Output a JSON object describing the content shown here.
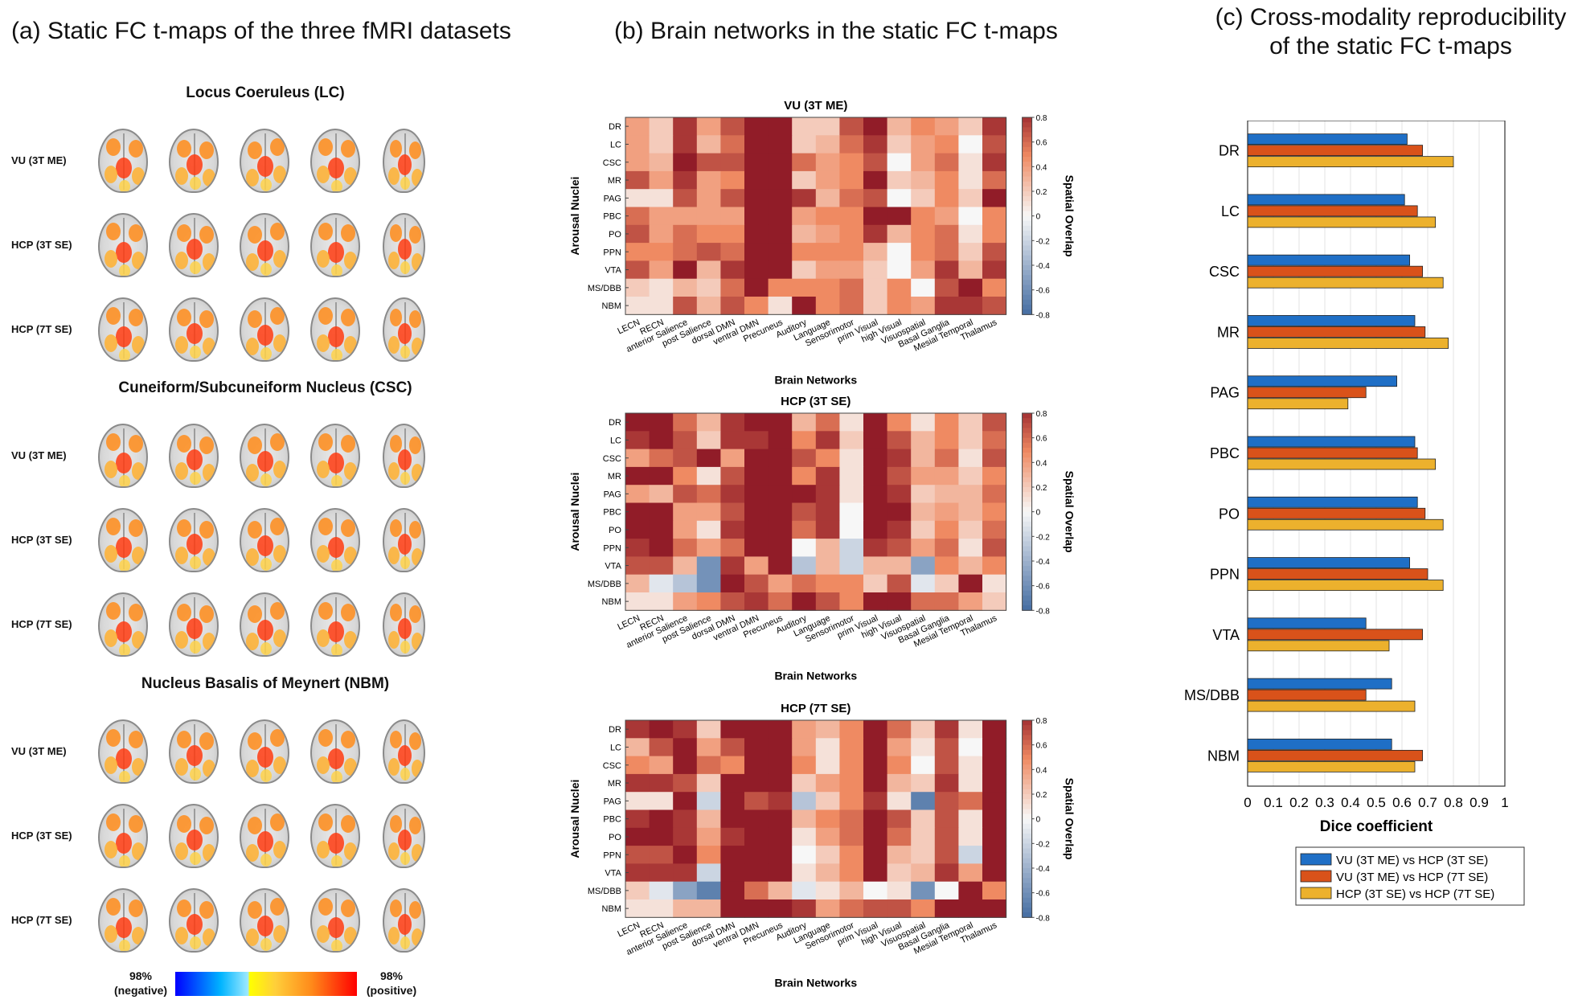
{
  "panel_a": {
    "title": "(a) Static FC t-maps of the three fMRI datasets",
    "groups": [
      {
        "title": "Locus Coeruleus (LC)",
        "rows": [
          "VU (3T ME)",
          "HCP (3T SE)",
          "HCP (7T SE)"
        ]
      },
      {
        "title": "Cuneiform/Subcuneiform Nucleus (CSC)",
        "rows": [
          "VU (3T ME)",
          "HCP (3T SE)",
          "HCP (7T SE)"
        ]
      },
      {
        "title": "Nucleus Basalis of Meynert (NBM)",
        "rows": [
          "VU (3T ME)",
          "HCP (3T SE)",
          "HCP (7T SE)"
        ]
      }
    ],
    "colorbar": {
      "left_label": "98%\n(negative)",
      "right_label": "98%\n(positive)",
      "left_line1": "98%",
      "left_line2": "(negative)",
      "right_line1": "98%",
      "right_line2": "(positive)"
    }
  },
  "panel_b": {
    "title": "(b) Brain networks in the static FC t-maps",
    "ylabel": "Arousal Nuclei",
    "xlabel": "Brain Networks",
    "cbar_label": "Spatial Overlap",
    "cbar_ticks": [
      "0.8",
      "0.6",
      "0.4",
      "0.2",
      "0",
      "-0.2",
      "-0.4",
      "-0.6",
      "-0.8"
    ],
    "nuclei": [
      "DR",
      "LC",
      "CSC",
      "MR",
      "PAG",
      "PBC",
      "PO",
      "PPN",
      "VTA",
      "MS/DBB",
      "NBM"
    ],
    "networks": [
      "LECN",
      "RECN",
      "anterior Salience",
      "post Salience",
      "dorsal DMN",
      "ventral DMN",
      "Precuneus",
      "Auditory",
      "Language",
      "Sensorimotor",
      "prim Visual",
      "high Visual",
      "Visuospatial",
      "Basal Ganglia",
      "Mesial Temporal",
      "Thalamus"
    ],
    "heatmaps": [
      {
        "title": "VU (3T ME)",
        "values": [
          [
            0.4,
            0.2,
            0.8,
            0.4,
            0.7,
            0.9,
            0.9,
            0.2,
            0.2,
            0.7,
            0.9,
            0.3,
            0.5,
            0.4,
            0.2,
            0.8
          ],
          [
            0.4,
            0.2,
            0.8,
            0.3,
            0.6,
            0.9,
            0.9,
            0.2,
            0.3,
            0.6,
            0.8,
            0.2,
            0.4,
            0.5,
            0.0,
            0.7
          ],
          [
            0.4,
            0.3,
            0.9,
            0.7,
            0.7,
            0.9,
            0.9,
            0.6,
            0.4,
            0.5,
            0.7,
            0.0,
            0.4,
            0.6,
            0.1,
            0.8
          ],
          [
            0.7,
            0.4,
            0.8,
            0.4,
            0.5,
            0.9,
            0.9,
            0.2,
            0.4,
            0.5,
            0.9,
            0.2,
            0.3,
            0.5,
            0.1,
            0.6
          ],
          [
            0.1,
            0.1,
            0.7,
            0.4,
            0.7,
            0.9,
            0.9,
            0.8,
            0.3,
            0.6,
            0.7,
            0.0,
            0.2,
            0.5,
            0.2,
            0.9
          ],
          [
            0.6,
            0.4,
            0.4,
            0.4,
            0.4,
            0.9,
            0.9,
            0.4,
            0.5,
            0.5,
            0.9,
            0.9,
            0.5,
            0.4,
            0.0,
            0.5
          ],
          [
            0.7,
            0.4,
            0.6,
            0.5,
            0.5,
            0.9,
            0.9,
            0.3,
            0.4,
            0.5,
            0.8,
            0.3,
            0.5,
            0.6,
            0.1,
            0.5
          ],
          [
            0.5,
            0.5,
            0.6,
            0.7,
            0.6,
            0.9,
            0.9,
            0.5,
            0.5,
            0.5,
            0.3,
            0.0,
            0.5,
            0.6,
            0.2,
            0.7
          ],
          [
            0.7,
            0.4,
            0.9,
            0.3,
            0.8,
            0.9,
            0.9,
            0.2,
            0.4,
            0.4,
            0.2,
            0.0,
            0.4,
            0.8,
            0.3,
            0.8
          ],
          [
            0.2,
            0.1,
            0.3,
            0.2,
            0.6,
            0.9,
            0.5,
            0.5,
            0.5,
            0.6,
            0.2,
            0.5,
            0.0,
            0.7,
            0.9,
            0.5
          ],
          [
            0.1,
            0.1,
            0.7,
            0.3,
            0.7,
            0.5,
            0.1,
            0.9,
            0.5,
            0.6,
            0.2,
            0.5,
            0.4,
            0.8,
            0.8,
            0.7
          ]
        ]
      },
      {
        "title": "HCP (3T SE)",
        "values": [
          [
            0.9,
            0.9,
            0.6,
            0.3,
            0.8,
            0.9,
            0.9,
            0.3,
            0.6,
            0.1,
            0.9,
            0.5,
            0.1,
            0.5,
            0.2,
            0.7
          ],
          [
            0.8,
            0.9,
            0.7,
            0.2,
            0.8,
            0.8,
            0.9,
            0.5,
            0.8,
            0.2,
            0.9,
            0.7,
            0.3,
            0.5,
            0.2,
            0.6
          ],
          [
            0.4,
            0.6,
            0.7,
            0.9,
            0.4,
            0.9,
            0.9,
            0.7,
            0.5,
            0.1,
            0.9,
            0.8,
            0.3,
            0.6,
            0.1,
            0.7
          ],
          [
            0.9,
            0.9,
            0.5,
            0.1,
            0.7,
            0.9,
            0.9,
            0.5,
            0.8,
            0.1,
            0.9,
            0.7,
            0.4,
            0.4,
            0.2,
            0.5
          ],
          [
            0.4,
            0.3,
            0.7,
            0.6,
            0.8,
            0.9,
            0.9,
            0.9,
            0.8,
            0.1,
            0.9,
            0.8,
            0.2,
            0.3,
            0.3,
            0.6
          ],
          [
            0.9,
            0.9,
            0.4,
            0.4,
            0.7,
            0.9,
            0.9,
            0.7,
            0.8,
            0.0,
            0.9,
            0.9,
            0.3,
            0.4,
            0.3,
            0.5
          ],
          [
            0.9,
            0.9,
            0.4,
            0.1,
            0.8,
            0.9,
            0.9,
            0.6,
            0.8,
            0.0,
            0.9,
            0.8,
            0.2,
            0.5,
            0.2,
            0.6
          ],
          [
            0.8,
            0.9,
            0.6,
            0.4,
            0.6,
            0.9,
            0.9,
            0.0,
            0.3,
            -0.2,
            0.8,
            0.7,
            0.4,
            0.6,
            0.1,
            0.7
          ],
          [
            0.7,
            0.7,
            0.3,
            -0.6,
            0.8,
            0.4,
            0.9,
            -0.3,
            0.3,
            -0.2,
            0.3,
            0.3,
            -0.5,
            0.5,
            0.3,
            0.5
          ],
          [
            0.3,
            -0.1,
            -0.3,
            -0.6,
            0.9,
            0.7,
            0.4,
            0.6,
            0.5,
            0.5,
            0.2,
            0.7,
            -0.1,
            0.2,
            0.9,
            0.1
          ],
          [
            0.1,
            0.1,
            0.4,
            0.5,
            0.7,
            0.8,
            0.6,
            0.9,
            0.7,
            0.5,
            0.9,
            0.9,
            0.6,
            0.6,
            0.4,
            0.2
          ]
        ]
      },
      {
        "title": "HCP (7T SE)",
        "values": [
          [
            0.8,
            0.9,
            0.8,
            0.2,
            0.9,
            0.9,
            0.9,
            0.4,
            0.3,
            0.5,
            0.9,
            0.6,
            0.2,
            0.8,
            0.1,
            0.9
          ],
          [
            0.3,
            0.7,
            0.9,
            0.4,
            0.7,
            0.9,
            0.9,
            0.4,
            0.1,
            0.5,
            0.9,
            0.4,
            0.1,
            0.7,
            0.0,
            0.9
          ],
          [
            0.5,
            0.4,
            0.9,
            0.6,
            0.5,
            0.9,
            0.9,
            0.5,
            0.1,
            0.5,
            0.9,
            0.5,
            0.0,
            0.7,
            0.1,
            0.9
          ],
          [
            0.8,
            0.8,
            0.7,
            0.2,
            0.9,
            0.9,
            0.9,
            0.2,
            0.4,
            0.5,
            0.9,
            0.3,
            0.2,
            0.8,
            0.1,
            0.9
          ],
          [
            0.1,
            0.1,
            0.9,
            -0.2,
            0.9,
            0.7,
            0.8,
            -0.3,
            0.2,
            0.5,
            0.8,
            0.1,
            -0.7,
            0.7,
            0.6,
            0.9
          ],
          [
            0.8,
            0.9,
            0.8,
            0.3,
            0.9,
            0.9,
            0.9,
            0.3,
            0.5,
            0.6,
            0.9,
            0.7,
            0.2,
            0.7,
            0.1,
            0.9
          ],
          [
            0.9,
            0.9,
            0.8,
            0.4,
            0.8,
            0.9,
            0.9,
            0.1,
            0.4,
            0.6,
            0.9,
            0.6,
            0.2,
            0.7,
            0.1,
            0.9
          ],
          [
            0.7,
            0.7,
            0.9,
            0.5,
            0.9,
            0.9,
            0.9,
            0.0,
            0.2,
            0.5,
            0.9,
            0.3,
            0.2,
            0.7,
            -0.2,
            0.9
          ],
          [
            0.8,
            0.8,
            0.8,
            -0.2,
            0.9,
            0.9,
            0.9,
            0.1,
            0.3,
            0.5,
            0.9,
            0.2,
            0.3,
            0.8,
            0.4,
            0.9
          ],
          [
            0.2,
            -0.1,
            -0.5,
            -0.7,
            0.9,
            0.6,
            0.3,
            -0.1,
            0.1,
            0.3,
            0.0,
            0.1,
            -0.6,
            0.0,
            0.9,
            0.5
          ],
          [
            0.1,
            0.1,
            0.3,
            0.3,
            0.9,
            0.9,
            0.9,
            0.8,
            0.4,
            0.6,
            0.7,
            0.7,
            0.5,
            0.9,
            0.9,
            0.9
          ]
        ]
      }
    ]
  },
  "panel_c": {
    "title_line1": "(c) Cross-modality reproducibility",
    "title_line2": "of the static FC t-maps"
  },
  "chart_data": {
    "type": "bar",
    "orientation": "horizontal",
    "title": "(c) Cross-modality reproducibility of the static FC t-maps",
    "xlabel": "Dice coefficient",
    "ylabel": "",
    "xlim": [
      0,
      1
    ],
    "xticks": [
      "0",
      "0.1",
      "0.2",
      "0.3",
      "0.4",
      "0.5",
      "0.6",
      "0.7",
      "0.8",
      "0.9",
      "1"
    ],
    "grid": true,
    "legend_position": "bottom",
    "categories": [
      "DR",
      "LC",
      "CSC",
      "MR",
      "PAG",
      "PBC",
      "PO",
      "PPN",
      "VTA",
      "MS/DBB",
      "NBM"
    ],
    "series": [
      {
        "name": "VU (3T ME) vs HCP (3T SE)",
        "color": "#1f6fc6",
        "values": [
          0.62,
          0.61,
          0.63,
          0.65,
          0.58,
          0.65,
          0.66,
          0.63,
          0.46,
          0.56,
          0.56
        ]
      },
      {
        "name": "VU (3T ME) vs HCP (7T SE)",
        "color": "#d9521a",
        "values": [
          0.68,
          0.66,
          0.68,
          0.69,
          0.46,
          0.66,
          0.69,
          0.7,
          0.68,
          0.46,
          0.68
        ]
      },
      {
        "name": "HCP (3T SE) vs HCP (7T SE)",
        "color": "#ecb12d",
        "values": [
          0.8,
          0.73,
          0.76,
          0.78,
          0.39,
          0.73,
          0.76,
          0.76,
          0.55,
          0.65,
          0.65
        ]
      }
    ]
  },
  "colors": {
    "heat_neg": "#1d4e8f",
    "heat_zero": "#f7f7f7",
    "heat_pos": "#7a0019"
  }
}
